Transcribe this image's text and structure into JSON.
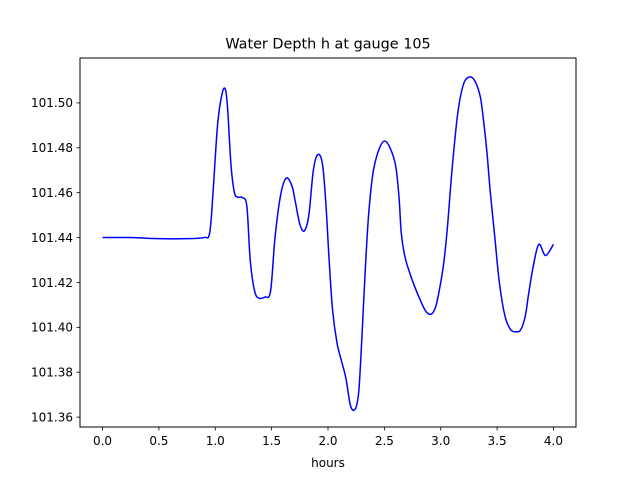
{
  "chart_data": {
    "type": "line",
    "title": "Water Depth h at gauge 105",
    "xlabel": "hours",
    "ylabel": "",
    "xlim": [
      -0.2,
      4.2
    ],
    "ylim": [
      101.3556,
      101.52
    ],
    "xticks": [
      0.0,
      0.5,
      1.0,
      1.5,
      2.0,
      2.5,
      3.0,
      3.5,
      4.0
    ],
    "xtick_labels": [
      "0.0",
      "0.5",
      "1.0",
      "1.5",
      "2.0",
      "2.5",
      "3.0",
      "3.5",
      "4.0"
    ],
    "yticks": [
      101.36,
      101.38,
      101.4,
      101.42,
      101.44,
      101.46,
      101.48,
      101.5
    ],
    "ytick_labels": [
      "101.36",
      "101.38",
      "101.40",
      "101.42",
      "101.44",
      "101.46",
      "101.48",
      "101.50"
    ],
    "grid": false,
    "series": [
      {
        "color": "#0000ff",
        "x": [
          0.0,
          0.25,
          0.5,
          0.75,
          0.9,
          0.95,
          0.98,
          1.02,
          1.06,
          1.09,
          1.11,
          1.14,
          1.17,
          1.2,
          1.24,
          1.28,
          1.31,
          1.35,
          1.39,
          1.44,
          1.49,
          1.53,
          1.58,
          1.63,
          1.68,
          1.71,
          1.75,
          1.79,
          1.83,
          1.87,
          1.91,
          1.95,
          1.98,
          2.01,
          2.04,
          2.08,
          2.12,
          2.16,
          2.2,
          2.24,
          2.27,
          2.29,
          2.31,
          2.33,
          2.36,
          2.4,
          2.45,
          2.5,
          2.55,
          2.6,
          2.63,
          2.65,
          2.68,
          2.72,
          2.77,
          2.82,
          2.87,
          2.92,
          2.96,
          3.0,
          3.03,
          3.06,
          3.1,
          3.15,
          3.2,
          3.25,
          3.3,
          3.35,
          3.38,
          3.41,
          3.44,
          3.48,
          3.52,
          3.57,
          3.62,
          3.67,
          3.71,
          3.75,
          3.78,
          3.82,
          3.87,
          3.93,
          4.0
        ],
        "y": [
          101.44,
          101.44,
          101.4395,
          101.4395,
          101.44,
          101.442,
          101.46,
          101.49,
          101.504,
          101.506,
          101.497,
          101.472,
          101.46,
          101.458,
          101.4578,
          101.454,
          101.43,
          101.416,
          101.413,
          101.4135,
          101.416,
          101.44,
          101.459,
          101.4665,
          101.463,
          101.456,
          101.446,
          101.443,
          101.45,
          101.47,
          101.477,
          101.473,
          101.456,
          101.43,
          101.408,
          101.393,
          101.385,
          101.377,
          101.365,
          101.3635,
          101.37,
          101.385,
          101.405,
          101.425,
          101.45,
          101.469,
          101.479,
          101.483,
          101.48,
          101.472,
          101.458,
          101.442,
          101.432,
          101.425,
          101.418,
          101.412,
          101.407,
          101.406,
          101.41,
          101.42,
          101.43,
          101.445,
          101.47,
          101.495,
          101.508,
          101.5115,
          101.51,
          101.503,
          101.492,
          101.478,
          101.46,
          101.44,
          101.42,
          101.405,
          101.399,
          101.398,
          101.399,
          101.405,
          101.415,
          101.427,
          101.437,
          101.432,
          101.437
        ]
      }
    ]
  }
}
